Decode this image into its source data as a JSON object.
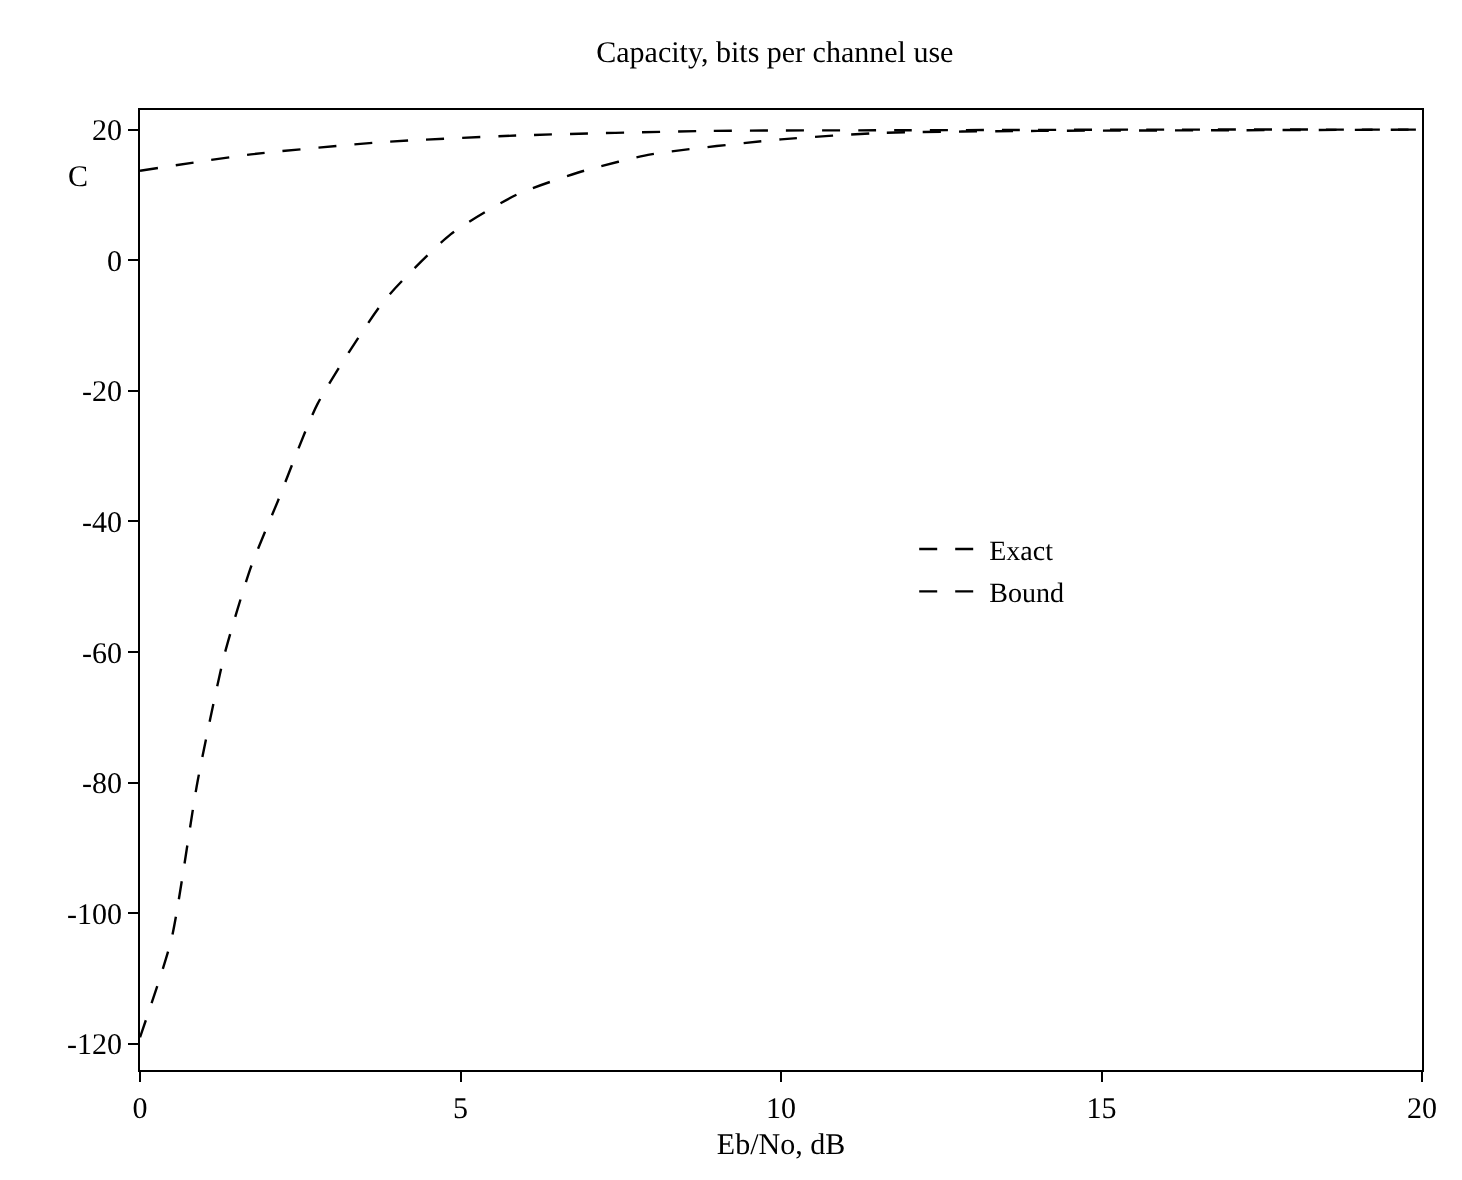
{
  "chart_data": {
    "type": "line",
    "title": "Capacity, bits per channel use",
    "xlabel": "Eb/No, dB",
    "ylabel": "C",
    "xlim": [
      0,
      20
    ],
    "ylim": [
      -124,
      23
    ],
    "xticks": [
      0,
      5,
      10,
      15,
      20
    ],
    "yticks": [
      -120,
      -100,
      -80,
      -60,
      -40,
      -20,
      0,
      20
    ],
    "legend": "right",
    "line_style": "dashed",
    "marker": "none",
    "series": [
      {
        "name": "Exact",
        "color": "#000000",
        "x": [
          0,
          0.49,
          0.9,
          1.32,
          1.73,
          2.15,
          2.77,
          3.81,
          4.85,
          5.89,
          6.93,
          7.97,
          10.0,
          11.6,
          14,
          17,
          20
        ],
        "values": [
          -119,
          -104,
          -79.7,
          -60.3,
          -47,
          -36.9,
          -22,
          -6.2,
          4,
          10.1,
          13.7,
          16.2,
          18.5,
          19.5,
          19.8,
          19.9,
          20
        ]
      },
      {
        "name": "Bound",
        "color": "#000000",
        "x": [
          0,
          1.73,
          3.81,
          5.89,
          8.9,
          12,
          16,
          20
        ],
        "values": [
          13.7,
          16.2,
          18.1,
          19.1,
          19.8,
          19.9,
          20,
          20
        ]
      }
    ]
  }
}
